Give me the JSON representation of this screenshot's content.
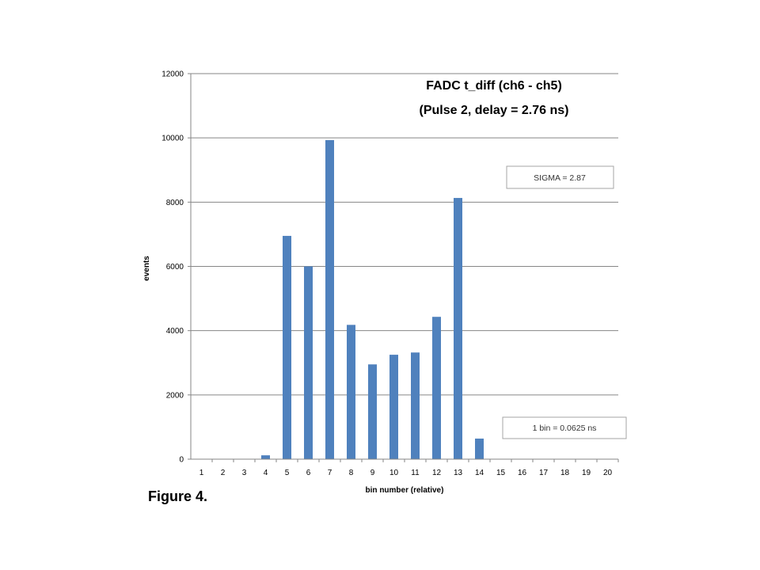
{
  "figure_caption": "Figure 4.",
  "chart_data": {
    "type": "bar",
    "title_line1": "FADC  t_diff (ch6 - ch5)",
    "title_line2": "(Pulse  2, delay = 2.76 ns)",
    "xlabel": "bin number (relative)",
    "ylabel": "events",
    "categories": [
      "1",
      "2",
      "3",
      "4",
      "5",
      "6",
      "7",
      "8",
      "9",
      "10",
      "11",
      "12",
      "13",
      "14",
      "15",
      "16",
      "17",
      "18",
      "19",
      "20"
    ],
    "values": [
      0,
      0,
      0,
      120,
      6950,
      6000,
      9930,
      4180,
      2950,
      3250,
      3320,
      4430,
      8130,
      640,
      0,
      0,
      0,
      0,
      0,
      0
    ],
    "ylim": [
      0,
      12000
    ],
    "yticks": [
      0,
      2000,
      4000,
      6000,
      8000,
      10000,
      12000
    ],
    "bar_color": "#4f81bd",
    "grid": true,
    "annotations": [
      "SIGMA = 2.87",
      "1 bin = 0.0625 ns"
    ]
  }
}
